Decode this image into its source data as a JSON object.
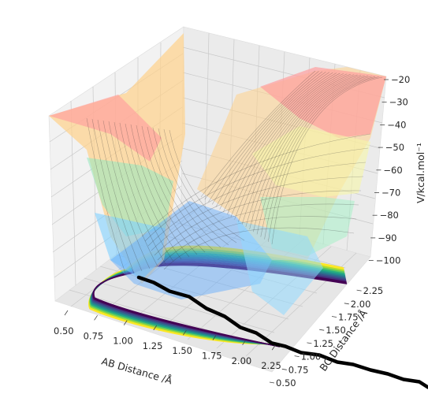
{
  "chart_data": {
    "type": "surface3d",
    "title": "",
    "xlabel": "AB Distance /Å",
    "ylabel": "BC Distance /Å",
    "zlabel": "V/kcal.mol⁻¹",
    "x_ticks": [
      "0.50",
      "0.75",
      "1.00",
      "1.25",
      "1.50",
      "1.75",
      "2.00",
      "2.25"
    ],
    "y_ticks": [
      "0.50",
      "0.75",
      "1.00",
      "1.25",
      "1.50",
      "1.75",
      "2.00",
      "2.25"
    ],
    "z_ticks": [
      "−20",
      "−30",
      "−40",
      "−50",
      "−60",
      "−70",
      "−80",
      "−90",
      "−100"
    ],
    "xlim": [
      0.4,
      2.45
    ],
    "ylim": [
      0.4,
      2.45
    ],
    "zlim": [
      -105,
      -18
    ],
    "grid": true,
    "surface_colormap": "jet",
    "contour_colormap": "viridis",
    "trajectory_color": "#000000"
  }
}
